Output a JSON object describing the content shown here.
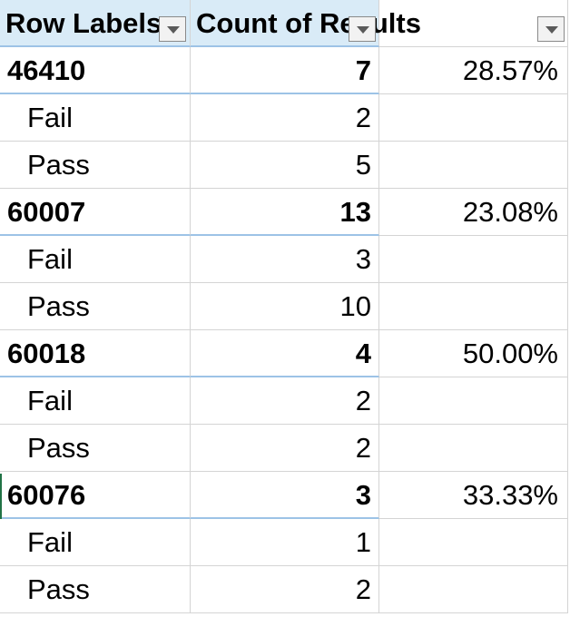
{
  "pivot": {
    "header": {
      "row_labels": "Row Labels",
      "count_label": "Count of Results",
      "col3_label": ""
    },
    "groups": [
      {
        "label": "46410",
        "count": "7",
        "pct": "28.57%",
        "items": [
          {
            "label": "Fail",
            "count": "2"
          },
          {
            "label": "Pass",
            "count": "5"
          }
        ]
      },
      {
        "label": "60007",
        "count": "13",
        "pct": "23.08%",
        "items": [
          {
            "label": "Fail",
            "count": "3"
          },
          {
            "label": "Pass",
            "count": "10"
          }
        ]
      },
      {
        "label": "60018",
        "count": "4",
        "pct": "50.00%",
        "items": [
          {
            "label": "Fail",
            "count": "2"
          },
          {
            "label": "Pass",
            "count": "2"
          }
        ]
      },
      {
        "label": "60076",
        "count": "3",
        "pct": "33.33%",
        "items": [
          {
            "label": "Fail",
            "count": "1"
          },
          {
            "label": "Pass",
            "count": "2"
          }
        ]
      }
    ]
  },
  "icons": {
    "filter": "filter-dropdown-icon"
  },
  "colors": {
    "header_fill": "#d9ebf7",
    "group_border": "#9dc3e6",
    "grid": "#d4d4d4"
  }
}
